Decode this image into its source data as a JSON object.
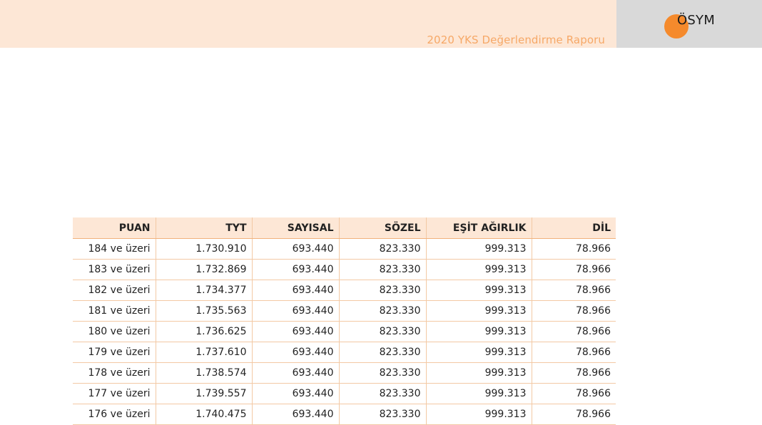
{
  "header": {
    "report_title": "2020 YKS Değerlendirme Raporu",
    "logo_text": "ÖSYM",
    "accent_color": "#f58a2c",
    "band_color": "#fde7d6"
  },
  "table": {
    "columns": [
      "PUAN",
      "TYT",
      "SAYISAL",
      "SÖZEL",
      "EŞİT AĞIRLIK",
      "DİL"
    ],
    "rows": [
      [
        "184 ve üzeri",
        "1.730.910",
        "693.440",
        "823.330",
        "999.313",
        "78.966"
      ],
      [
        "183 ve üzeri",
        "1.732.869",
        "693.440",
        "823.330",
        "999.313",
        "78.966"
      ],
      [
        "182 ve üzeri",
        "1.734.377",
        "693.440",
        "823.330",
        "999.313",
        "78.966"
      ],
      [
        "181 ve üzeri",
        "1.735.563",
        "693.440",
        "823.330",
        "999.313",
        "78.966"
      ],
      [
        "180 ve üzeri",
        "1.736.625",
        "693.440",
        "823.330",
        "999.313",
        "78.966"
      ],
      [
        "179 ve üzeri",
        "1.737.610",
        "693.440",
        "823.330",
        "999.313",
        "78.966"
      ],
      [
        "178 ve üzeri",
        "1.738.574",
        "693.440",
        "823.330",
        "999.313",
        "78.966"
      ],
      [
        "177 ve üzeri",
        "1.739.557",
        "693.440",
        "823.330",
        "999.313",
        "78.966"
      ],
      [
        "176 ve üzeri",
        "1.740.475",
        "693.440",
        "823.330",
        "999.313",
        "78.966"
      ]
    ]
  }
}
